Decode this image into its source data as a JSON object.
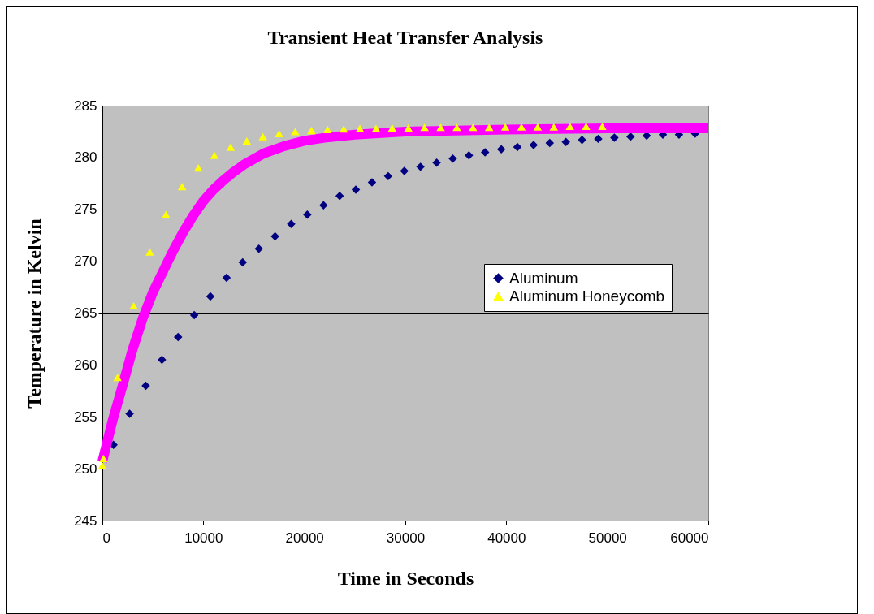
{
  "chart_data": {
    "type": "scatter",
    "title": "Transient Heat Transfer Analysis",
    "xlabel": "Time in Seconds",
    "ylabel": "Temperature in Kelvin",
    "xlim": [
      0,
      60000
    ],
    "xticks": [
      0,
      10000,
      20000,
      30000,
      40000,
      50000,
      60000
    ],
    "ylim": [
      245,
      285
    ],
    "yticks": [
      245,
      250,
      255,
      260,
      265,
      270,
      275,
      280,
      285
    ],
    "grid": "y",
    "legend": "right",
    "series": [
      {
        "name": "Aluminum",
        "color": "#000080",
        "marker": "diamond",
        "x": [
          1100,
          2700,
          4300,
          5900,
          7500,
          9100,
          10700,
          12300,
          13900,
          15500,
          17100,
          18700,
          20300,
          21900,
          23500,
          25100,
          26700,
          28300,
          29900,
          31500,
          33100,
          34700,
          36300,
          37900,
          39500,
          41100,
          42700,
          44300,
          45900,
          47500,
          49100,
          50700,
          52300,
          53900,
          55500,
          57100,
          58700
        ],
        "values": [
          252.3,
          255.3,
          258.0,
          260.5,
          262.7,
          264.8,
          266.6,
          268.4,
          269.9,
          271.2,
          272.4,
          273.6,
          274.5,
          275.4,
          276.3,
          276.9,
          277.6,
          278.2,
          278.7,
          279.1,
          279.5,
          279.9,
          280.2,
          280.5,
          280.8,
          281.0,
          281.2,
          281.4,
          281.5,
          281.7,
          281.8,
          281.9,
          282.0,
          282.1,
          282.2,
          282.2,
          282.3
        ]
      },
      {
        "type": "line",
        "color": "#ff00ff",
        "x": [
          0,
          1000,
          2000,
          3000,
          4000,
          5000,
          6000,
          7000,
          8000,
          9000,
          10000,
          11000,
          12000,
          13000,
          14000,
          16000,
          18000,
          20000,
          22000,
          25000,
          30000,
          35000,
          40000,
          50000,
          60000
        ],
        "values": [
          250.7,
          254.6,
          258.0,
          261.5,
          264.5,
          267.0,
          269.0,
          271.0,
          272.8,
          274.4,
          275.8,
          276.9,
          277.8,
          278.6,
          279.3,
          280.4,
          281.1,
          281.6,
          281.9,
          282.2,
          282.5,
          282.6,
          282.7,
          282.8,
          282.8
        ]
      },
      {
        "name": "Aluminum Honeycomb",
        "color": "#ffff00",
        "marker": "triangle",
        "x": [
          0,
          100,
          1500,
          3100,
          4700,
          6300,
          7900,
          9500,
          11100,
          12700,
          14300,
          15900,
          17500,
          19100,
          20700,
          22300,
          23900,
          25500,
          27100,
          28700,
          30300,
          31900,
          33500,
          35100,
          36700,
          38300,
          39900,
          41500,
          43100,
          44700,
          46300,
          47900,
          49500
        ],
        "values": [
          250.3,
          251.0,
          258.8,
          265.7,
          270.9,
          274.5,
          277.2,
          279.0,
          280.2,
          281.0,
          281.6,
          282.0,
          282.3,
          282.5,
          282.6,
          282.7,
          282.75,
          282.8,
          282.8,
          282.85,
          282.85,
          282.9,
          282.9,
          282.9,
          282.9,
          282.9,
          282.95,
          282.95,
          282.95,
          282.95,
          283.0,
          283.0,
          283.0
        ]
      }
    ]
  }
}
